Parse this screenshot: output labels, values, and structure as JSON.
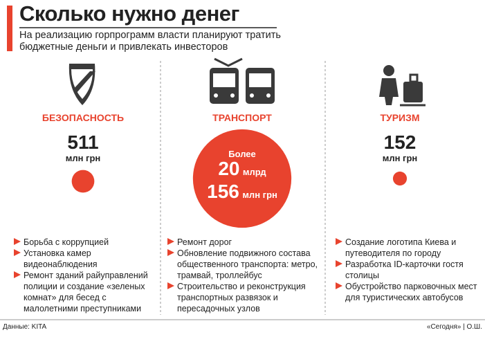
{
  "header": {
    "title": "Сколько нужно денег",
    "subtitle": "На реализацию горпрограмм власти планируют тратить бюджетные деньги и привлекать инвесторов"
  },
  "columns": [
    {
      "label": "БЕЗОПАСНОСТЬ",
      "amount": 511,
      "unit": "млн грн",
      "items": [
        "Борьба с коррупцией",
        "Установка камер видеонаблюдения",
        "Ремонт зданий райуправлений полиции и создание «зеленых комнат» для бесед с малолетними преступниками"
      ]
    },
    {
      "label": "ТРАНСПОРТ",
      "prefix": "Более",
      "billions": 20,
      "billions_unit": "млрд",
      "millions": 156,
      "millions_unit": "млн грн",
      "items": [
        "Ремонт дорог",
        "Обновление подвижного состава общественного транспорта: метро, трамвай, троллейбус",
        "Строительство и реконструкция транспортных развязок и пересадочных узлов"
      ]
    },
    {
      "label": "ТУРИЗМ",
      "amount": 152,
      "unit": "млн грн",
      "items": [
        "Создание логотипа Киева и путеводителя по городу",
        "Разработка ID-карточки гостя столицы",
        "Обустройство парковочных мест для туристических автобусов"
      ]
    }
  ],
  "footer": {
    "source": "Данные: KITA",
    "credit": "«Сегодня» | О.Ш."
  }
}
